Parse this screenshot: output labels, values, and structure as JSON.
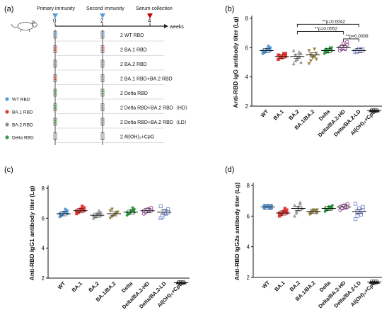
{
  "panels": {
    "a": {
      "label": "(a)",
      "timeline": {
        "events": [
          {
            "name": "Primary immunity",
            "week": "0",
            "color": "#5b9bd5"
          },
          {
            "name": "Second immunity",
            "week": "2",
            "color": "#5b9bd5"
          },
          {
            "name": "Serum collection",
            "week": "4",
            "color": "#c00000"
          }
        ],
        "unit": "weeks"
      },
      "groups": [
        {
          "label": "2  WT  RBD",
          "dot_colors": [
            "#5b9bd5",
            "#5b9bd5"
          ]
        },
        {
          "label": "2  BA.1  RBD",
          "dot_colors": [
            "#e53935",
            "#e53935"
          ]
        },
        {
          "label": "2  BA.2  RBD",
          "dot_colors": [
            "#8c8c8c",
            "#8c8c8c"
          ]
        },
        {
          "label": "2  BA.1 RBD+BA.2 RBD",
          "dot_colors": [
            "#e53935",
            "#8c8c8c"
          ]
        },
        {
          "label": "2  Delta  RBD",
          "dot_colors": [
            "#2e9e3f",
            "#2e9e3f"
          ]
        },
        {
          "label": "2  Delta RBD+BA.2 RBD（HD）",
          "dot_colors": [
            "#2e9e3f",
            "#8c8c8c"
          ]
        },
        {
          "label": "2  Delta RBD+BA.2 RBD（LD）",
          "dot_colors": [
            "#2e9e3f",
            "#8c8c8c"
          ]
        },
        {
          "label": "2  Al(OH)₃+CpG",
          "dot_colors": [
            "#cccccc",
            "#cccccc"
          ]
        }
      ],
      "legend": [
        {
          "label": "WT RBD",
          "color": "#5b9bd5"
        },
        {
          "label": "BA.1 RBD",
          "color": "#e53935"
        },
        {
          "label": "BA.2 RBD",
          "color": "#8c8c8c"
        },
        {
          "label": "Delta RBD",
          "color": "#2e9e3f"
        }
      ]
    },
    "b": {
      "label": "(b)"
    },
    "c": {
      "label": "(c)"
    },
    "d": {
      "label": "(d)"
    }
  },
  "chart_data": [
    {
      "panel": "b",
      "type": "scatter",
      "ylabel": "Anti-RBD IgG antibody titer (Lg)",
      "ylim": [
        2,
        8
      ],
      "yticks": [
        2,
        4,
        6,
        8
      ],
      "categories": [
        "WT",
        "BA.1",
        "BA.2",
        "BA.1/BA.2",
        "Delta",
        "Delta/BA.2-HD",
        "Delta/BA.2-LD",
        "Al(OH)₃+CpG"
      ],
      "colors": [
        "#5b9bd5",
        "#e53935",
        "#9e9e9e",
        "#9a8a4a",
        "#2e9e3f",
        "#8e3a8e",
        "#7b8ad0",
        "#222222"
      ],
      "markers": [
        "circle",
        "square",
        "triangle-up",
        "triangle-down",
        "diamond",
        "circle-open",
        "square-open",
        "triangle-up"
      ],
      "values": [
        [
          5.6,
          5.7,
          5.8,
          5.9,
          6.0,
          5.8,
          5.7,
          5.9,
          6.1,
          5.8
        ],
        [
          5.2,
          5.3,
          5.4,
          5.5,
          5.6,
          5.5,
          5.4,
          5.3,
          5.6,
          5.4
        ],
        [
          4.9,
          5.1,
          5.3,
          5.4,
          5.6,
          5.8,
          5.5,
          5.2,
          5.7,
          5.0
        ],
        [
          4.9,
          5.1,
          5.3,
          5.4,
          5.6,
          5.8,
          5.5,
          5.4,
          5.9,
          5.2
        ],
        [
          5.6,
          5.7,
          5.8,
          5.9,
          6.0,
          5.8,
          5.9,
          5.7,
          6.0,
          5.8
        ],
        [
          5.8,
          5.9,
          6.0,
          6.1,
          6.2,
          6.0,
          6.1,
          6.3,
          5.9,
          6.4
        ],
        [
          5.7,
          5.8,
          5.8,
          5.9,
          5.9,
          5.8,
          5.7,
          5.9,
          5.8,
          5.8
        ],
        [
          1.7,
          1.7,
          1.7,
          1.7,
          1.7,
          1.7,
          1.7,
          1.7,
          1.7,
          1.7
        ]
      ],
      "means": [
        5.8,
        5.4,
        5.4,
        5.5,
        5.8,
        6.0,
        5.8,
        1.7
      ],
      "annotations": [
        {
          "text": "**p=0.0042",
          "from": "BA.2",
          "to": "Delta/BA.2-LD",
          "y": 7.6
        },
        {
          "text": "**p=0.0052",
          "from": "BA.2",
          "to": "Delta/BA.2-HD",
          "y": 7.1
        },
        {
          "text": "**p=0.0099",
          "from": "Delta/BA.2-HD",
          "to": "Delta/BA.2-LD",
          "y": 6.6
        }
      ]
    },
    {
      "panel": "c",
      "type": "scatter",
      "ylabel": "Anti-RBD IgG1 antibody titer (Lg)",
      "ylim": [
        2,
        8
      ],
      "yticks": [
        2,
        4,
        6,
        8
      ],
      "categories": [
        "WT",
        "BA.1",
        "BA.2",
        "BA.1/BA.2",
        "Delta",
        "Delta/BA.2-HD",
        "Delta/BA.2-LD",
        "Al(OH)₃+CpG"
      ],
      "colors": [
        "#5b9bd5",
        "#e53935",
        "#9e9e9e",
        "#9a8a4a",
        "#2e9e3f",
        "#8e3a8e",
        "#7b8ad0",
        "#222222"
      ],
      "markers": [
        "circle",
        "square",
        "triangle-up",
        "triangle-down",
        "diamond",
        "circle-open",
        "square-open",
        "triangle-up"
      ],
      "values": [
        [
          6.1,
          6.2,
          6.3,
          6.4,
          6.5,
          6.3,
          6.2,
          6.4,
          6.6,
          6.3
        ],
        [
          6.3,
          6.4,
          6.5,
          6.6,
          6.7,
          6.5,
          6.4,
          6.6,
          6.8,
          6.5
        ],
        [
          6.0,
          6.1,
          6.2,
          6.3,
          6.4,
          6.2,
          6.1,
          6.3,
          6.5,
          6.2
        ],
        [
          6.0,
          6.1,
          6.2,
          6.3,
          6.4,
          6.5,
          6.6,
          6.2,
          6.3,
          6.4
        ],
        [
          6.2,
          6.3,
          6.4,
          6.5,
          6.6,
          6.4,
          6.3,
          6.5,
          6.7,
          6.4
        ],
        [
          6.3,
          6.4,
          6.5,
          6.6,
          6.7,
          6.5,
          6.4,
          6.6,
          6.5,
          6.5
        ],
        [
          6.0,
          6.1,
          6.3,
          6.4,
          6.6,
          6.8,
          6.2,
          6.5,
          6.3,
          6.4
        ],
        [
          1.7,
          1.7,
          1.7,
          1.7,
          1.7,
          1.7,
          1.7,
          1.7,
          1.7,
          1.7
        ]
      ],
      "means": [
        6.3,
        6.5,
        6.2,
        6.3,
        6.4,
        6.5,
        6.4,
        1.7
      ]
    },
    {
      "panel": "d",
      "type": "scatter",
      "ylabel": "Anti-RBD IgG2a antibody titer (Lg)",
      "ylim": [
        2,
        8
      ],
      "yticks": [
        2,
        4,
        6,
        8
      ],
      "categories": [
        "WT",
        "BA.1",
        "BA.2",
        "BA.1/BA.2",
        "Delta",
        "Delta/BA.2-HD",
        "Delta/BA.2-LD",
        "Al(OH)₃+CpG"
      ],
      "colors": [
        "#5b9bd5",
        "#e53935",
        "#9e9e9e",
        "#9a8a4a",
        "#2e9e3f",
        "#8e3a8e",
        "#7b8ad0",
        "#222222"
      ],
      "markers": [
        "circle",
        "square",
        "triangle-up",
        "triangle-down",
        "diamond",
        "circle-open",
        "square-open",
        "triangle-up"
      ],
      "values": [
        [
          6.5,
          6.6,
          6.7,
          6.6,
          6.5,
          6.7,
          6.6,
          6.6,
          6.5,
          6.7
        ],
        [
          6.0,
          6.1,
          6.2,
          6.3,
          6.4,
          6.2,
          6.1,
          6.3,
          6.5,
          6.2
        ],
        [
          6.0,
          6.3,
          6.6,
          6.9,
          6.5,
          6.7,
          6.2,
          6.4,
          6.8,
          6.5
        ],
        [
          6.1,
          6.2,
          6.3,
          6.3,
          6.4,
          6.2,
          6.3,
          6.4,
          6.3,
          6.2
        ],
        [
          6.3,
          6.4,
          6.5,
          6.6,
          6.7,
          6.5,
          6.4,
          6.6,
          6.5,
          6.5
        ],
        [
          6.4,
          6.5,
          6.6,
          6.7,
          6.8,
          6.6,
          6.5,
          6.7,
          6.6,
          6.6
        ],
        [
          5.8,
          6.0,
          6.2,
          6.4,
          6.6,
          6.8,
          6.3,
          6.5,
          6.1,
          6.4
        ],
        [
          1.7,
          1.7,
          1.7,
          1.7,
          1.7,
          1.7,
          1.7,
          1.7,
          1.7,
          1.7
        ]
      ],
      "means": [
        6.6,
        6.2,
        6.5,
        6.3,
        6.5,
        6.6,
        6.3,
        1.7
      ]
    }
  ]
}
